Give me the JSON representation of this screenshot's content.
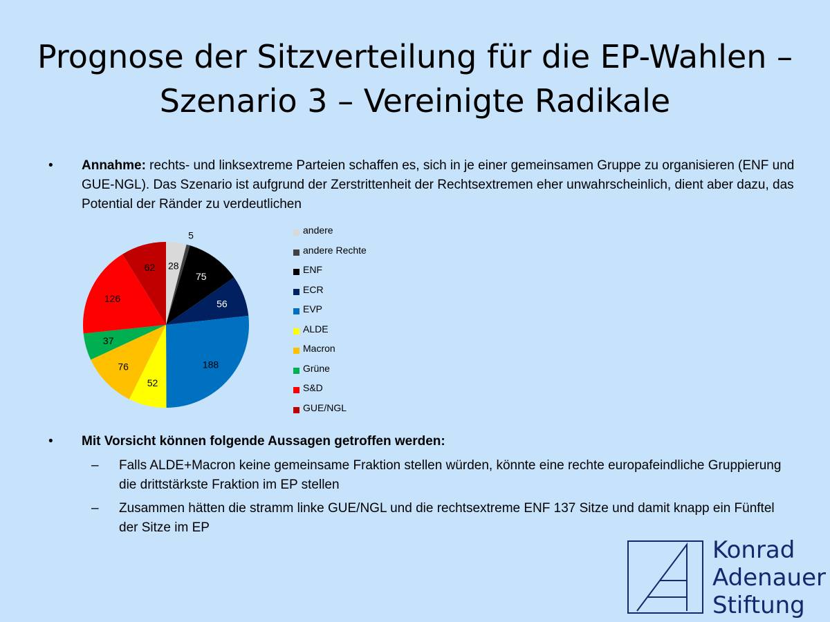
{
  "title": {
    "line1": "Prognose der Sitzverteilung für die EP-Wahlen –",
    "line2": "Szenario 3 – Vereinigte Radikale"
  },
  "bullets": {
    "symbol": "•",
    "first": {
      "label": "Annahme:",
      "text": " rechts- und linksextreme Parteien schaffen es, sich in je einer gemeinsamen Gruppe zu organisieren (ENF und GUE-NGL). Das Szenario ist aufgrund der Zerstrittenheit der Rechtsextremen eher unwahrscheinlich, dient aber dazu, das Potential der Ränder zu verdeutlichen"
    },
    "second": {
      "label": "Mit Vorsicht können folgende Aussagen getroffen werden:"
    },
    "dash": "–",
    "sub1": "Falls ALDE+Macron keine gemeinsame Fraktion stellen würden, könnte eine rechte europafeindliche Gruppierung die drittstärkste Fraktion im EP stellen",
    "sub2": "Zusammen hätten die stramm linke GUE/NGL und die rechtsextreme ENF 137 Sitze und damit knapp ein Fünftel der Sitze im EP"
  },
  "chart_data": {
    "type": "pie",
    "title": "",
    "legend_position": "right",
    "labels": [
      "andere",
      "andere Rechte",
      "ENF",
      "ECR",
      "EVP",
      "ALDE",
      "Macron",
      "Grüne",
      "S&D",
      "GUE/NGL"
    ],
    "values": [
      28,
      5,
      75,
      56,
      188,
      52,
      76,
      37,
      126,
      62
    ],
    "colors": [
      "#d9d9d9",
      "#404040",
      "#000000",
      "#002060",
      "#0070c0",
      "#ffff00",
      "#ffc000",
      "#00b050",
      "#ff0000",
      "#c00000"
    ],
    "label_colors": [
      "#000000",
      "#000000",
      "#ffffff",
      "#ffffff",
      "#000000",
      "#000000",
      "#000000",
      "#000000",
      "#000000",
      "#000000"
    ]
  },
  "logo": {
    "line1": "Konrad",
    "line2": "Adenauer",
    "line3": "Stiftung",
    "color": "#14286e"
  }
}
